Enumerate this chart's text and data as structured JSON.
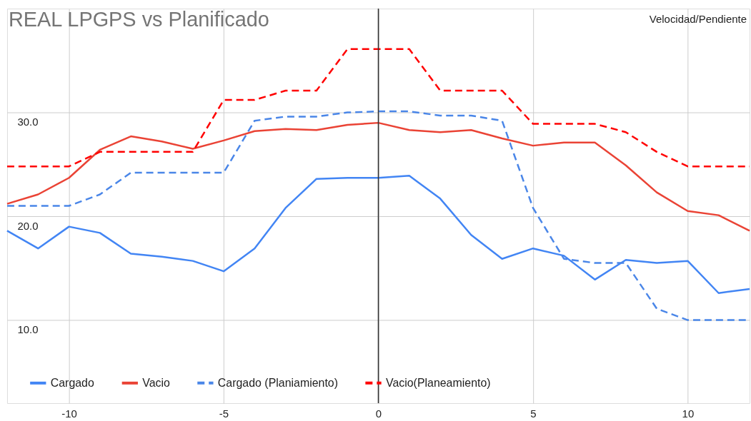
{
  "chart_data": {
    "type": "line",
    "title": "REAL LPGPS vs Planificado",
    "ylabel": "Velocidad/Pendiente",
    "x": [
      -12,
      -11,
      -10,
      -9,
      -8,
      -7,
      -6,
      -5,
      -4,
      -3,
      -2,
      -1,
      0,
      1,
      2,
      3,
      4,
      5,
      6,
      7,
      8,
      9,
      10,
      11,
      12
    ],
    "series": [
      {
        "name": "Cargado",
        "color": "#4285f4",
        "line_style": "solid",
        "values": [
          18.6,
          16.9,
          19.0,
          18.4,
          16.4,
          16.1,
          15.7,
          14.7,
          16.9,
          20.8,
          23.6,
          23.7,
          23.7,
          23.9,
          21.7,
          18.2,
          15.9,
          16.9,
          16.2,
          13.9,
          15.8,
          15.5,
          15.7,
          12.6,
          13.0
        ]
      },
      {
        "name": "Vacio",
        "color": "#ea4335",
        "line_style": "solid",
        "values": [
          21.2,
          22.1,
          23.7,
          26.4,
          27.7,
          27.2,
          26.5,
          27.3,
          28.2,
          28.4,
          28.3,
          28.8,
          29.0,
          28.3,
          28.1,
          28.3,
          27.5,
          26.8,
          27.1,
          27.1,
          24.9,
          22.3,
          20.5,
          20.1,
          18.6
        ]
      },
      {
        "name": "Cargado (Planiamiento)",
        "color": "#4a86e8",
        "line_style": "dashed",
        "values": [
          21.0,
          21.0,
          21.0,
          22.1,
          24.2,
          24.2,
          24.2,
          24.2,
          29.2,
          29.6,
          29.6,
          30.0,
          30.1,
          30.1,
          29.7,
          29.7,
          29.2,
          20.8,
          15.9,
          15.5,
          15.5,
          11.1,
          10.0,
          10.0,
          10.0
        ]
      },
      {
        "name": "Vacio(Planeamiento)",
        "color": "#ff0000",
        "line_style": "dashed",
        "values": [
          24.8,
          24.8,
          24.8,
          26.2,
          26.2,
          26.2,
          26.2,
          31.2,
          31.2,
          32.1,
          32.1,
          36.1,
          36.1,
          36.1,
          32.1,
          32.1,
          32.1,
          28.9,
          28.9,
          28.9,
          28.1,
          26.2,
          24.8,
          24.8,
          24.8
        ]
      }
    ],
    "xlim": [
      -12,
      12
    ],
    "xticks": [
      -10,
      -5,
      0,
      5,
      10
    ],
    "ylim": [
      2,
      40
    ],
    "yticks": [
      {
        "value": 10,
        "label": "10.0"
      },
      {
        "value": 20,
        "label": "20.0"
      },
      {
        "value": 30,
        "label": "30.0"
      }
    ],
    "ref_lines": [
      {
        "axis": "x",
        "value": 0,
        "color": "#333333"
      }
    ],
    "grid": true,
    "legend": "bottom",
    "marker": "none"
  }
}
